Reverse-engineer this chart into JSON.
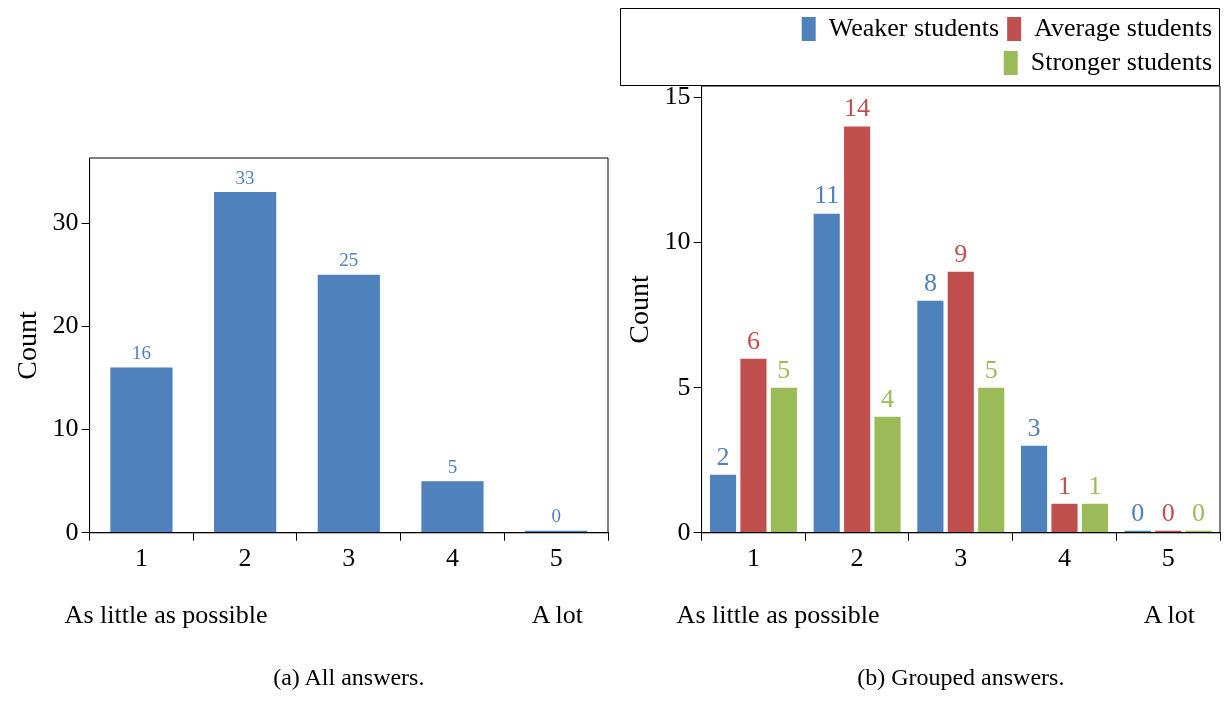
{
  "chart_data": [
    {
      "type": "bar",
      "title": "(a) All answers.",
      "ylabel": "Count",
      "categories": [
        "1",
        "2",
        "3",
        "4",
        "5"
      ],
      "values": [
        16,
        33,
        25,
        5,
        0
      ],
      "color": "#4f81bd",
      "ylim": [
        0,
        36.3
      ],
      "yticks": [
        0,
        10,
        20,
        30
      ],
      "data_labels": true,
      "grid": false,
      "legend": false,
      "annotations": [
        "As little as possible",
        "A lot"
      ]
    },
    {
      "type": "bar",
      "title": "(b) Grouped answers.",
      "ylabel": "Count",
      "categories": [
        "1",
        "2",
        "3",
        "4",
        "5"
      ],
      "series": [
        {
          "name": "Weaker students",
          "color": "#4f81bd",
          "values": [
            2,
            11,
            8,
            3,
            0
          ]
        },
        {
          "name": "Average students",
          "color": "#c0504d",
          "values": [
            6,
            14,
            9,
            1,
            0
          ]
        },
        {
          "name": "Stronger students",
          "color": "#9bbb59",
          "values": [
            5,
            4,
            5,
            1,
            0
          ]
        }
      ],
      "ylim": [
        0,
        15.4
      ],
      "yticks": [
        0,
        5,
        10,
        15
      ],
      "data_labels": true,
      "grid": false,
      "legend": "top right",
      "annotations": [
        "As little as possible",
        "A lot"
      ]
    }
  ]
}
